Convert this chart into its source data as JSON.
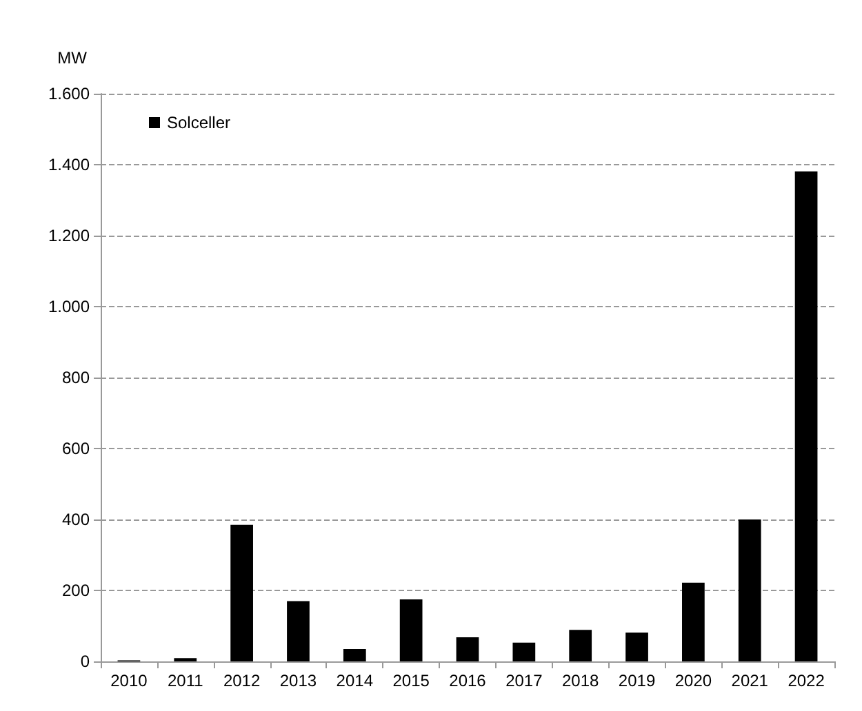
{
  "chart_data": {
    "type": "bar",
    "ylabel": "MW",
    "categories": [
      "2010",
      "2011",
      "2012",
      "2013",
      "2014",
      "2015",
      "2016",
      "2017",
      "2018",
      "2019",
      "2020",
      "2021",
      "2022"
    ],
    "series": [
      {
        "name": "Solceller",
        "color": "#000000",
        "values": [
          3,
          9,
          385,
          170,
          35,
          175,
          68,
          53,
          89,
          81,
          222,
          400,
          1381
        ]
      }
    ],
    "ylim": [
      0,
      1600
    ],
    "yticks": [
      {
        "value": 0,
        "label": "0"
      },
      {
        "value": 200,
        "label": "200"
      },
      {
        "value": 400,
        "label": "400"
      },
      {
        "value": 600,
        "label": "600"
      },
      {
        "value": 800,
        "label": "800"
      },
      {
        "value": 1000,
        "label": "1.000"
      },
      {
        "value": 1200,
        "label": "1.200"
      },
      {
        "value": 1400,
        "label": "1.400"
      },
      {
        "value": 1600,
        "label": "1.600"
      }
    ],
    "grid": "y",
    "legend": "top left"
  }
}
